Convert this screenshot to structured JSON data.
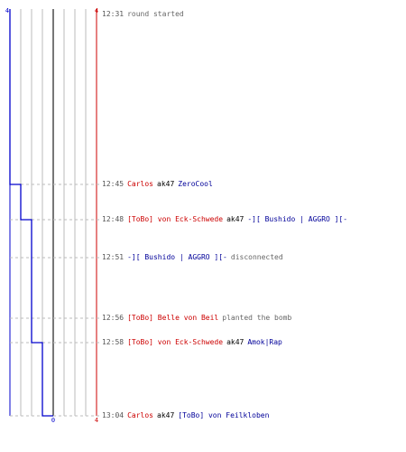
{
  "scale": {
    "left": "4",
    "right": "4",
    "bottom_left": "0",
    "bottom_right": "4"
  },
  "colors": {
    "t": "#cc0000",
    "ct": "#000099",
    "grid": "#bbbbbb",
    "step": "#0000cc"
  },
  "score_steps": [
    4,
    3,
    2,
    2,
    1,
    0
  ],
  "events": [
    {
      "time": "12:31",
      "parts": [
        {
          "text": "round started",
          "role": "info"
        }
      ]
    },
    {
      "time": "12:45",
      "parts": [
        {
          "text": "Carlos",
          "role": "t"
        },
        {
          "text": "ak47",
          "role": "weapon"
        },
        {
          "text": "ZeroCool",
          "role": "ct"
        }
      ]
    },
    {
      "time": "12:48",
      "parts": [
        {
          "text": "[ToBo] von Eck-Schwede",
          "role": "t"
        },
        {
          "text": "ak47",
          "role": "weapon"
        },
        {
          "text": "-][ Bushido | AGGRO ][-",
          "role": "ct"
        }
      ]
    },
    {
      "time": "12:51",
      "parts": [
        {
          "text": "-][ Bushido | AGGRO ][-",
          "role": "ct"
        },
        {
          "text": "disconnected",
          "role": "info"
        }
      ]
    },
    {
      "time": "12:56",
      "parts": [
        {
          "text": "[ToBo] Belle von Beil",
          "role": "t"
        },
        {
          "text": "planted the bomb",
          "role": "info"
        }
      ]
    },
    {
      "time": "12:58",
      "parts": [
        {
          "text": "[ToBo] von Eck-Schwede",
          "role": "t"
        },
        {
          "text": "ak47",
          "role": "weapon"
        },
        {
          "text": "Amok|Rap",
          "role": "ct"
        }
      ]
    },
    {
      "time": "13:04",
      "parts": [
        {
          "text": "Carlos",
          "role": "t"
        },
        {
          "text": "ak47",
          "role": "weapon"
        },
        {
          "text": "[ToBo] von Feilkloben",
          "role": "ct"
        }
      ]
    }
  ]
}
